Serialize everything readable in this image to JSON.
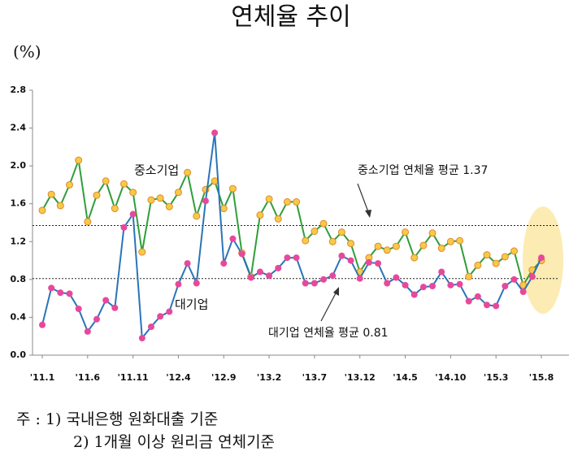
{
  "chart_data": {
    "type": "line",
    "title": "연체율 추이",
    "unit": "(%)",
    "categories": [
      "'11.1",
      null,
      null,
      null,
      null,
      "'11.6",
      null,
      null,
      null,
      null,
      "'11.11",
      null,
      null,
      null,
      null,
      "'12.4",
      null,
      null,
      null,
      null,
      "'12.9",
      null,
      null,
      null,
      null,
      "'13.2",
      null,
      null,
      null,
      null,
      "'13.7",
      null,
      null,
      null,
      null,
      "'13.12",
      null,
      null,
      null,
      null,
      "'14.5",
      null,
      null,
      null,
      null,
      "'14.10",
      null,
      null,
      null,
      null,
      "'15.3",
      null,
      null,
      null,
      null,
      "'15.8"
    ],
    "series": [
      {
        "name": "중소기업",
        "color": "#2f9e3a",
        "marker_color": "#f7c948",
        "values": [
          1.53,
          1.7,
          1.58,
          1.8,
          2.06,
          1.41,
          1.69,
          1.84,
          1.55,
          1.81,
          1.72,
          1.09,
          1.64,
          1.66,
          1.57,
          1.72,
          1.93,
          1.47,
          1.75,
          1.84,
          1.55,
          1.76,
          1.08,
          0.83,
          1.48,
          1.65,
          1.44,
          1.62,
          1.62,
          1.21,
          1.31,
          1.39,
          1.2,
          1.3,
          1.18,
          0.88,
          1.03,
          1.15,
          1.11,
          1.15,
          1.3,
          1.03,
          1.16,
          1.29,
          1.13,
          1.2,
          1.21,
          0.83,
          0.95,
          1.06,
          0.97,
          1.04,
          1.1,
          0.74,
          0.9,
          1.0
        ]
      },
      {
        "name": "대기업",
        "color": "#2a74b8",
        "marker_color": "#e8489b",
        "values": [
          0.32,
          0.71,
          0.66,
          0.65,
          0.49,
          0.25,
          0.38,
          0.58,
          0.5,
          1.35,
          1.49,
          0.18,
          0.3,
          0.41,
          0.46,
          0.75,
          0.97,
          0.76,
          1.63,
          2.35,
          0.97,
          1.23,
          1.07,
          0.82,
          0.88,
          0.84,
          0.92,
          1.03,
          1.03,
          0.76,
          0.76,
          0.8,
          0.84,
          1.05,
          1.0,
          0.81,
          0.98,
          0.97,
          0.76,
          0.82,
          0.74,
          0.64,
          0.72,
          0.73,
          0.88,
          0.74,
          0.75,
          0.57,
          0.62,
          0.53,
          0.52,
          0.73,
          0.8,
          0.67,
          0.83,
          1.03
        ]
      }
    ],
    "reference_lines": [
      {
        "value": 1.37,
        "label": "중소기업 연체율 평균 1.37"
      },
      {
        "value": 0.81,
        "label": "대기업 연체율 평균 0.81"
      }
    ],
    "ylim": [
      0,
      2.8
    ],
    "yticks": [
      {
        "value": 0,
        "label": "0.0"
      },
      0.4,
      0.8,
      1.2,
      1.6,
      {
        "value": 2,
        "label": "2.0"
      },
      2.4,
      2.8
    ],
    "grid": false,
    "notes": [
      "주 : 1) 국내은행 원화대출 기준",
      "2) 1개월 이상 원리금 연체기준"
    ]
  }
}
